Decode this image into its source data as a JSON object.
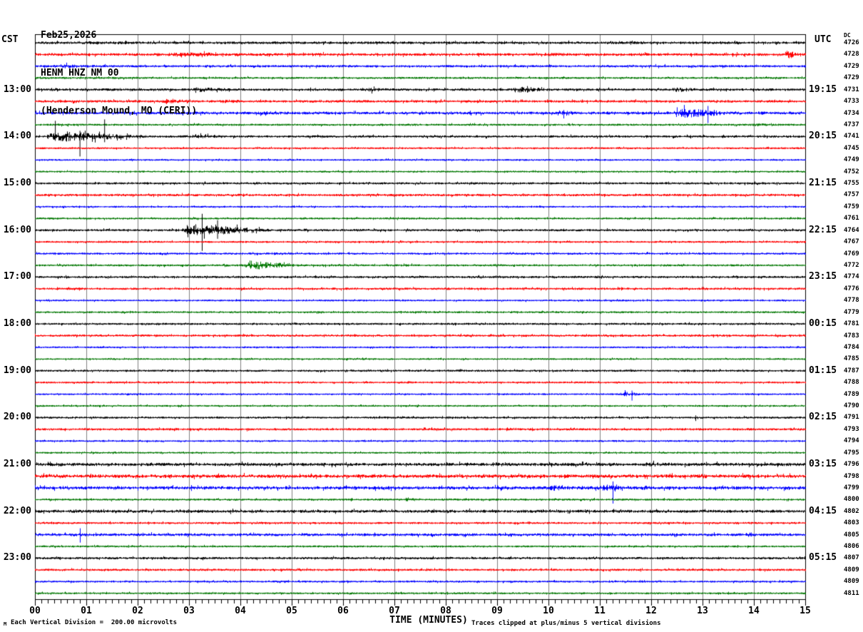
{
  "title": {
    "date": "Feb25,2026",
    "station": "HENM HNZ NM 00",
    "location": "(Henderson Mound, MO (CERI))"
  },
  "axis": {
    "left_timezone": "CST",
    "right_timezone": "UTC",
    "dc_header": "DC",
    "x_title": "TIME (MINUTES)",
    "x_tick_labels": [
      "00",
      "01",
      "02",
      "03",
      "04",
      "05",
      "06",
      "07",
      "08",
      "09",
      "10",
      "11",
      "12",
      "13",
      "14",
      "15"
    ],
    "left_hour_labels": [
      {
        "row": 5,
        "label": "13:00"
      },
      {
        "row": 9,
        "label": "14:00"
      },
      {
        "row": 13,
        "label": "15:00"
      },
      {
        "row": 17,
        "label": "16:00"
      },
      {
        "row": 21,
        "label": "17:00"
      },
      {
        "row": 25,
        "label": "18:00"
      },
      {
        "row": 29,
        "label": "19:00"
      },
      {
        "row": 33,
        "label": "20:00"
      },
      {
        "row": 37,
        "label": "21:00"
      },
      {
        "row": 41,
        "label": "22:00"
      },
      {
        "row": 45,
        "label": "23:00"
      }
    ],
    "right_hour_labels": [
      {
        "row": 5,
        "label": "19:15"
      },
      {
        "row": 9,
        "label": "20:15"
      },
      {
        "row": 13,
        "label": "21:15"
      },
      {
        "row": 17,
        "label": "22:15"
      },
      {
        "row": 21,
        "label": "23:15"
      },
      {
        "row": 25,
        "label": "00:15"
      },
      {
        "row": 29,
        "label": "01:15"
      },
      {
        "row": 33,
        "label": "02:15"
      },
      {
        "row": 37,
        "label": "03:15"
      },
      {
        "row": 41,
        "label": "04:15"
      },
      {
        "row": 45,
        "label": "05:15"
      }
    ]
  },
  "footer": {
    "corner_mark": "M",
    "scale_note": "Each Vertical Division =  200.00 microvolts",
    "clip_note": "Traces clipped at plus/minus 5 vertical divisions"
  },
  "colors": {
    "black": "#000000",
    "red": "#ff0000",
    "blue": "#0000ff",
    "green": "#007700",
    "grid": "#808080",
    "frame": "#000000",
    "background": "#ffffff"
  },
  "chart_data": {
    "type": "line",
    "title": "HENM HNZ NM 00 helicorder, Feb25,2026",
    "x_unit": "minutes",
    "x_range": [
      0,
      15
    ],
    "minutes_per_line": 15,
    "lines_per_hour": 4,
    "trace_color_cycle": [
      "black",
      "red",
      "blue",
      "green"
    ],
    "rows": [
      {
        "dc": "4726",
        "color": "black",
        "base": 1.4,
        "events": [
          [
            1.3,
            2.7,
            2.0
          ],
          [
            4.0,
            6.5,
            1.8
          ],
          [
            8.0,
            9.6,
            1.6
          ],
          [
            11.4,
            12.6,
            1.6
          ]
        ],
        "spikes": []
      },
      {
        "dc": "4728",
        "color": "red",
        "base": 1.5,
        "events": [
          [
            2.3,
            4.8,
            3.2
          ],
          [
            5.2,
            6.2,
            2.2
          ],
          [
            9.7,
            11.2,
            2.4
          ],
          [
            13.2,
            14.3,
            2.0
          ],
          [
            14.55,
            15.0,
            5.5
          ]
        ],
        "spikes": []
      },
      {
        "dc": "4729",
        "color": "blue",
        "base": 1.2,
        "events": [
          [
            0.0,
            2.6,
            2.4
          ],
          [
            5.5,
            7.0,
            1.5
          ]
        ],
        "spikes": []
      },
      {
        "dc": "4729",
        "color": "green",
        "base": 1.0,
        "events": [
          [
            4.5,
            6.0,
            1.4
          ],
          [
            9.0,
            10.0,
            1.3
          ]
        ],
        "spikes": []
      },
      {
        "dc": "4731",
        "color": "black",
        "base": 1.3,
        "events": [
          [
            2.9,
            4.5,
            3.0
          ],
          [
            6.3,
            7.4,
            2.6
          ],
          [
            9.2,
            10.5,
            4.2
          ],
          [
            12.3,
            13.3,
            3.4
          ]
        ],
        "spikes": []
      },
      {
        "dc": "4733",
        "color": "red",
        "base": 1.3,
        "events": [
          [
            2.4,
            3.3,
            4.2
          ],
          [
            3.3,
            5.2,
            2.0
          ]
        ],
        "spikes": []
      },
      {
        "dc": "4734",
        "color": "blue",
        "base": 1.5,
        "events": [
          [
            4.0,
            6.3,
            2.2
          ],
          [
            10.15,
            10.8,
            4.2
          ],
          [
            10.9,
            12.3,
            2.2
          ],
          [
            12.3,
            14.0,
            6.5
          ],
          [
            14.0,
            14.7,
            2.0
          ]
        ],
        "spikes": [
          [
            13.1,
            10,
            14
          ]
        ]
      },
      {
        "dc": "4737",
        "color": "green",
        "base": 1.0,
        "events": [
          [
            13.8,
            14.7,
            2.2
          ]
        ],
        "spikes": []
      },
      {
        "dc": "4741",
        "color": "black",
        "base": 1.2,
        "events": [
          [
            0.0,
            2.7,
            7.0
          ],
          [
            2.7,
            4.4,
            2.4
          ]
        ],
        "spikes": [
          [
            0.39,
            22,
            6
          ],
          [
            0.87,
            8,
            28
          ],
          [
            1.35,
            24,
            8
          ]
        ]
      },
      {
        "dc": "4745",
        "color": "red",
        "base": 0.9,
        "events": [],
        "spikes": []
      },
      {
        "dc": "4749",
        "color": "blue",
        "base": 0.8,
        "events": [],
        "spikes": []
      },
      {
        "dc": "4752",
        "color": "green",
        "base": 0.8,
        "events": [],
        "spikes": []
      },
      {
        "dc": "4755",
        "color": "black",
        "base": 1.1,
        "events": [],
        "spikes": []
      },
      {
        "dc": "4757",
        "color": "red",
        "base": 1.2,
        "events": [],
        "spikes": []
      },
      {
        "dc": "4759",
        "color": "blue",
        "base": 0.8,
        "events": [],
        "spikes": []
      },
      {
        "dc": "4761",
        "color": "green",
        "base": 0.9,
        "events": [],
        "spikes": []
      },
      {
        "dc": "4764",
        "color": "black",
        "base": 1.1,
        "events": [
          [
            2.65,
            5.0,
            8.0
          ],
          [
            5.0,
            6.0,
            2.0
          ],
          [
            6.0,
            7.2,
            1.5
          ]
        ],
        "spikes": [
          [
            3.25,
            23,
            29
          ],
          [
            3.55,
            14,
            12
          ]
        ]
      },
      {
        "dc": "4767",
        "color": "red",
        "base": 0.9,
        "events": [],
        "spikes": []
      },
      {
        "dc": "4769",
        "color": "blue",
        "base": 1.0,
        "events": [
          [
            2.4,
            3.0,
            1.8
          ],
          [
            4.5,
            5.1,
            1.6
          ],
          [
            7.4,
            8.2,
            1.5
          ]
        ],
        "spikes": []
      },
      {
        "dc": "4772",
        "color": "green",
        "base": 1.0,
        "events": [
          [
            3.6,
            3.98,
            2.0
          ],
          [
            3.98,
            5.4,
            6.0
          ],
          [
            5.4,
            6.3,
            1.8
          ],
          [
            6.9,
            8.4,
            1.3
          ],
          [
            10.6,
            11.6,
            1.3
          ]
        ],
        "spikes": []
      },
      {
        "dc": "4774",
        "color": "black",
        "base": 1.1,
        "events": [],
        "spikes": []
      },
      {
        "dc": "4776",
        "color": "red",
        "base": 1.1,
        "events": [],
        "spikes": []
      },
      {
        "dc": "4778",
        "color": "blue",
        "base": 0.8,
        "events": [],
        "spikes": []
      },
      {
        "dc": "4779",
        "color": "green",
        "base": 0.9,
        "events": [],
        "spikes": []
      },
      {
        "dc": "4781",
        "color": "black",
        "base": 1.0,
        "events": [],
        "spikes": []
      },
      {
        "dc": "4783",
        "color": "red",
        "base": 1.1,
        "events": [],
        "spikes": []
      },
      {
        "dc": "4784",
        "color": "blue",
        "base": 0.8,
        "events": [],
        "spikes": []
      },
      {
        "dc": "4785",
        "color": "green",
        "base": 0.8,
        "events": [],
        "spikes": []
      },
      {
        "dc": "4787",
        "color": "black",
        "base": 1.0,
        "events": [],
        "spikes": []
      },
      {
        "dc": "4788",
        "color": "red",
        "base": 0.9,
        "events": [],
        "spikes": []
      },
      {
        "dc": "4789",
        "color": "blue",
        "base": 0.8,
        "events": [
          [
            11.35,
            11.95,
            3.5
          ]
        ],
        "spikes": [
          [
            11.62,
            5,
            9
          ]
        ]
      },
      {
        "dc": "4790",
        "color": "green",
        "base": 0.8,
        "events": [],
        "spikes": []
      },
      {
        "dc": "4791",
        "color": "black",
        "base": 1.0,
        "events": [
          [
            12.82,
            13.05,
            3.0
          ]
        ],
        "spikes": []
      },
      {
        "dc": "4793",
        "color": "red",
        "base": 1.2,
        "events": [],
        "spikes": []
      },
      {
        "dc": "4794",
        "color": "blue",
        "base": 0.8,
        "events": [],
        "spikes": []
      },
      {
        "dc": "4795",
        "color": "green",
        "base": 0.8,
        "events": [],
        "spikes": []
      },
      {
        "dc": "4796",
        "color": "black",
        "base": 1.8,
        "events": [
          [
            8.5,
            10.5,
            2.6
          ],
          [
            11.5,
            13.5,
            2.8
          ]
        ],
        "spikes": []
      },
      {
        "dc": "4798",
        "color": "red",
        "base": 2.0,
        "events": [
          [
            0.0,
            1.8,
            2.6
          ],
          [
            7.8,
            9.0,
            2.4
          ],
          [
            12.6,
            14.6,
            2.7
          ]
        ],
        "spikes": []
      },
      {
        "dc": "4799",
        "color": "blue",
        "base": 1.9,
        "events": [
          [
            6.1,
            6.6,
            2.6
          ],
          [
            9.8,
            10.9,
            4.0
          ],
          [
            10.9,
            11.7,
            5.5
          ],
          [
            11.7,
            12.4,
            3.0
          ]
        ],
        "spikes": [
          [
            11.25,
            9,
            22
          ]
        ]
      },
      {
        "dc": "4800",
        "color": "green",
        "base": 1.0,
        "events": [
          [
            7.1,
            7.6,
            3.4
          ]
        ],
        "spikes": []
      },
      {
        "dc": "4802",
        "color": "black",
        "base": 1.7,
        "events": [
          [
            0.2,
            1.3,
            2.2
          ],
          [
            5.0,
            7.0,
            2.0
          ]
        ],
        "spikes": []
      },
      {
        "dc": "4803",
        "color": "red",
        "base": 1.0,
        "events": [],
        "spikes": []
      },
      {
        "dc": "4805",
        "color": "blue",
        "base": 1.5,
        "events": [
          [
            0.6,
            1.2,
            3.0
          ]
        ],
        "spikes": [
          [
            0.875,
            9,
            11
          ]
        ]
      },
      {
        "dc": "4806",
        "color": "green",
        "base": 0.9,
        "events": [],
        "spikes": []
      },
      {
        "dc": "4807",
        "color": "black",
        "base": 1.2,
        "events": [],
        "spikes": []
      },
      {
        "dc": "4809",
        "color": "red",
        "base": 1.1,
        "events": [
          [
            0.4,
            1.1,
            1.6
          ]
        ],
        "spikes": []
      },
      {
        "dc": "4809",
        "color": "blue",
        "base": 0.9,
        "events": [],
        "spikes": []
      },
      {
        "dc": "4811",
        "color": "green",
        "base": 0.9,
        "events": [],
        "spikes": []
      }
    ]
  }
}
